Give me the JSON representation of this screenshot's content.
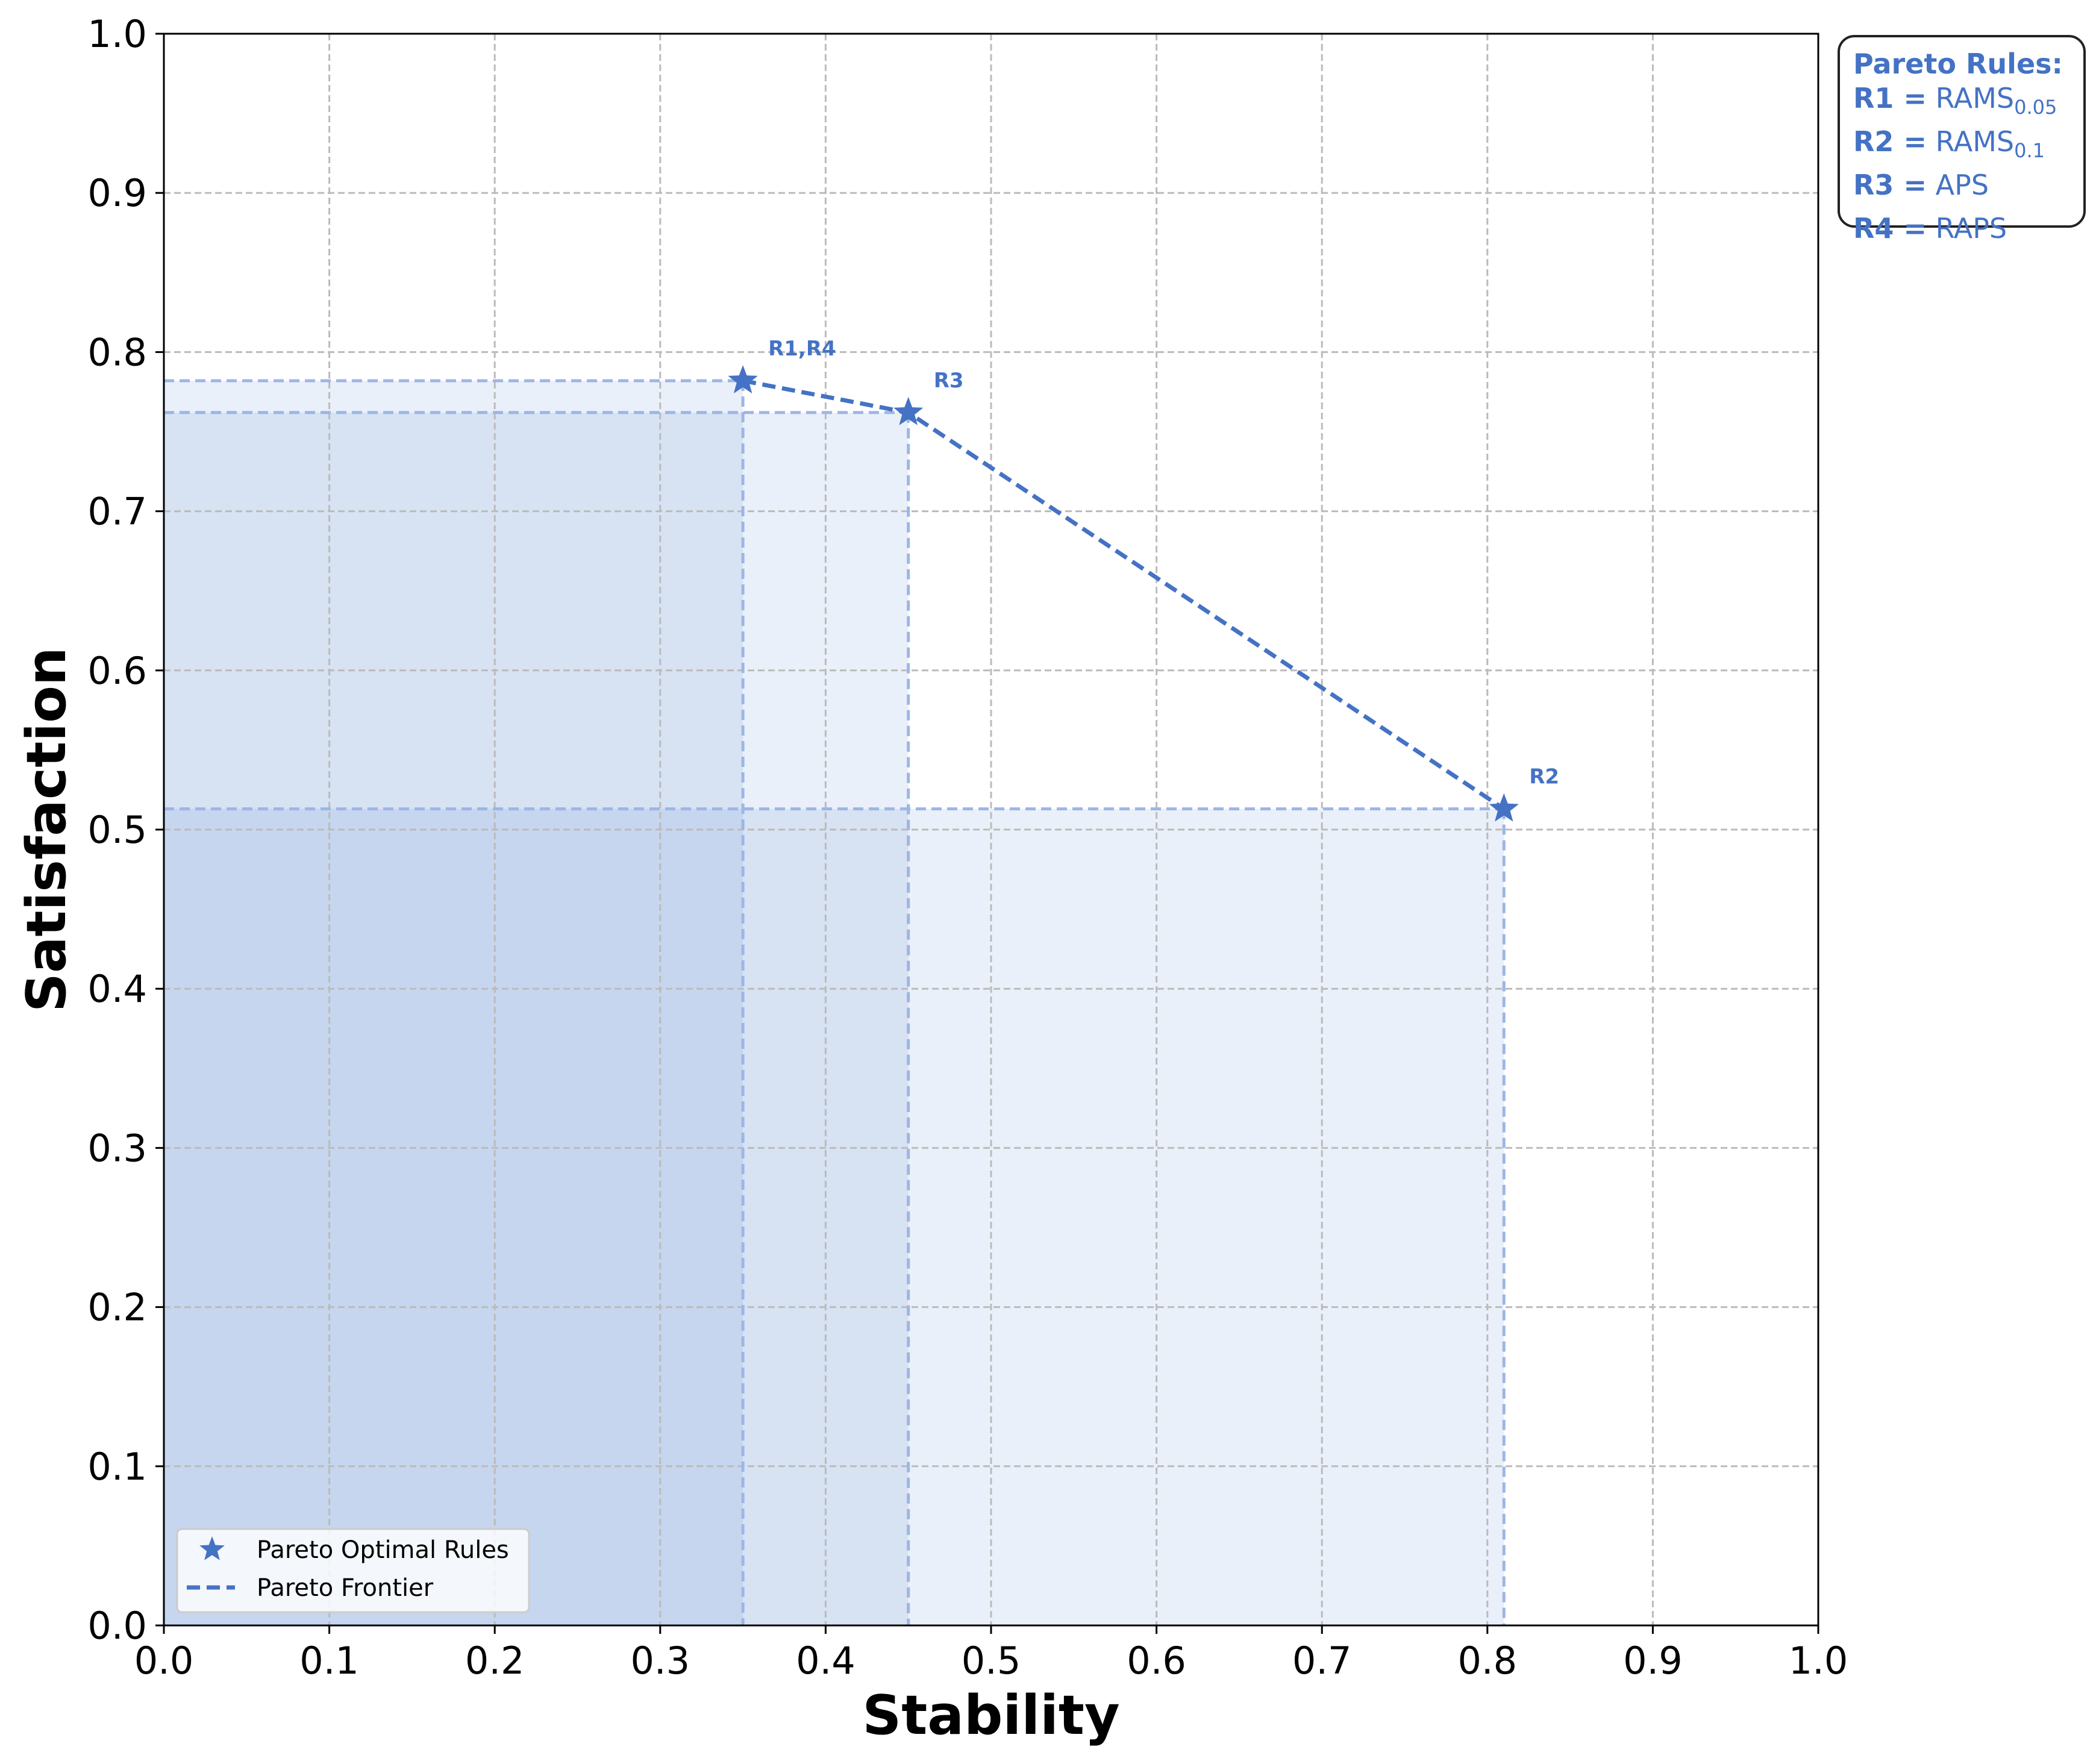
{
  "colors": {
    "accent": "#4472C4",
    "region": "#4472C4",
    "region_line": "#9DB5E6",
    "grid": "#BBBBBB"
  },
  "chart_data": {
    "type": "scatter",
    "xlabel": "Stability",
    "ylabel": "Satisfaction",
    "xlim": [
      0.0,
      1.0
    ],
    "ylim": [
      0.0,
      1.0
    ],
    "x_ticks": [
      "0.0",
      "0.1",
      "0.2",
      "0.3",
      "0.4",
      "0.5",
      "0.6",
      "0.7",
      "0.8",
      "0.9",
      "1.0"
    ],
    "y_ticks": [
      "0.0",
      "0.1",
      "0.2",
      "0.3",
      "0.4",
      "0.5",
      "0.6",
      "0.7",
      "0.8",
      "0.9",
      "1.0"
    ],
    "grid": true,
    "legend_placement": "lower-left",
    "series": [
      {
        "name": "Pareto Optimal Rules",
        "marker": "star",
        "points": [
          {
            "x": 0.35,
            "y": 0.782,
            "label": "R1,R4"
          },
          {
            "x": 0.45,
            "y": 0.762,
            "label": "R3"
          },
          {
            "x": 0.81,
            "y": 0.513,
            "label": "R2"
          }
        ]
      },
      {
        "name": "Pareto Frontier",
        "style": "dashed",
        "points": [
          {
            "x": 0.35,
            "y": 0.782
          },
          {
            "x": 0.45,
            "y": 0.762
          },
          {
            "x": 0.81,
            "y": 0.513
          }
        ]
      }
    ],
    "dominated_regions": [
      {
        "x": 0.35,
        "y": 0.782
      },
      {
        "x": 0.45,
        "y": 0.762
      },
      {
        "x": 0.81,
        "y": 0.513
      }
    ]
  },
  "rules_box": {
    "title": "Pareto Rules:",
    "rules": [
      {
        "key": "R1 =",
        "value": "RAMS",
        "sub": "0.05"
      },
      {
        "key": "R2 =",
        "value": "RAMS",
        "sub": "0.1"
      },
      {
        "key": "R3 =",
        "value": "APS",
        "sub": ""
      },
      {
        "key": "R4 =",
        "value": "RAPS",
        "sub": ""
      }
    ]
  }
}
